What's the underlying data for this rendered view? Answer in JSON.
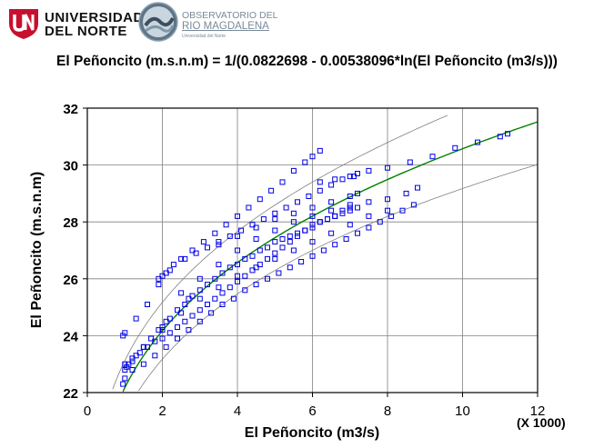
{
  "logos": {
    "university_line1": "UNIVERSIDAD",
    "university_line2": "DEL NORTE",
    "observatory_line1": "OBSERVATORIO DEL",
    "observatory_line2": "RIO MAGDALENA",
    "observatory_line3": "Universidad del Norte"
  },
  "chart_data": {
    "type": "scatter",
    "title": "El Peñoncito (m.s.n.m) = 1/(0.0822698 - 0.00538096*ln(El Peñoncito (m3/s)))",
    "xlabel": "El Peñoncito (m3/s)",
    "ylabel": "El Peñoncito (m.s.n.m)",
    "x_multiplier": "(X 1000)",
    "xlim": [
      0,
      12
    ],
    "ylim": [
      22,
      32
    ],
    "x_ticks": [
      0,
      2,
      4,
      6,
      8,
      10,
      12
    ],
    "y_ticks": [
      22,
      24,
      26,
      28,
      30,
      32
    ],
    "grid": true,
    "fit_model": {
      "a": 0.0822698,
      "b": 0.00538096
    },
    "colors": {
      "points": "#0000e6",
      "fit": "#008000",
      "bands": "#808080"
    },
    "series": [
      {
        "name": "",
        "kind": "points",
        "x": [
          0.95,
          1.0,
          1.0,
          1.05,
          1.1,
          1.2,
          1.3,
          1.5,
          1.7,
          1.9,
          2.0,
          2.1,
          2.2,
          2.4,
          2.6,
          2.7,
          2.8,
          3.0,
          3.2,
          3.4,
          3.6,
          3.8,
          4.0,
          4.2,
          4.4,
          4.6,
          4.8,
          5.0,
          5.2,
          5.4,
          5.6,
          5.8,
          6.0,
          6.2,
          6.4,
          6.6,
          6.8,
          7.0,
          7.2,
          1.0,
          1.2,
          1.4,
          1.6,
          1.8,
          2.0,
          2.2,
          2.4,
          2.6,
          2.8,
          3.0,
          3.2,
          3.4,
          3.6,
          3.8,
          4.0,
          4.2,
          4.4,
          4.6,
          4.8,
          5.0,
          5.2,
          5.4,
          5.6,
          5.8,
          6.0,
          6.2,
          6.4,
          6.6,
          6.8,
          7.0,
          1.2,
          1.5,
          1.8,
          2.1,
          2.4,
          2.7,
          3.0,
          3.3,
          3.6,
          3.9,
          4.2,
          4.5,
          4.8,
          5.1,
          5.4,
          5.7,
          6.0,
          6.3,
          6.6,
          6.9,
          7.2,
          7.5,
          7.8,
          8.1,
          8.4,
          8.7,
          2.5,
          3.0,
          3.5,
          4.0,
          4.5,
          5.0,
          5.5,
          6.0,
          6.5,
          7.0,
          7.5,
          8.0,
          8.5,
          8.8,
          6.2,
          6.6,
          7.0,
          7.5,
          8.0,
          8.6,
          9.2,
          9.8,
          10.4,
          11.0,
          11.2,
          0.95,
          1.0,
          1.3,
          1.6,
          1.9,
          2.0,
          2.1,
          2.2,
          2.5,
          2.8,
          3.1,
          3.4,
          3.7,
          4.0,
          4.3,
          4.6,
          4.9,
          5.2,
          5.5,
          5.8,
          6.0,
          6.2,
          1.9,
          2.1,
          2.3,
          2.6,
          2.9,
          3.2,
          3.5,
          3.8,
          4.1,
          4.4,
          4.7,
          5.0,
          5.3,
          5.6,
          5.9,
          6.2,
          6.5,
          6.8,
          7.1,
          7.2,
          3.5,
          4.0,
          4.5,
          5.0,
          5.5,
          6.0,
          6.5,
          7.0,
          7.2,
          1.5,
          2.0,
          2.5,
          3.0,
          3.5,
          4.0,
          4.5,
          5.0,
          5.5,
          6.0,
          6.5,
          7.0,
          7.5,
          8.0
        ],
        "y": [
          22.3,
          22.5,
          22.8,
          22.9,
          23.0,
          23.1,
          23.3,
          23.6,
          23.9,
          24.2,
          24.3,
          24.5,
          24.6,
          24.9,
          25.1,
          25.3,
          25.4,
          25.6,
          25.8,
          26.0,
          26.2,
          26.4,
          26.5,
          26.7,
          26.8,
          27.0,
          27.1,
          27.3,
          27.4,
          27.5,
          27.6,
          27.7,
          27.8,
          28.0,
          28.1,
          28.2,
          28.3,
          28.4,
          28.5,
          23.0,
          23.2,
          23.4,
          23.6,
          23.8,
          23.9,
          24.1,
          24.3,
          24.5,
          24.7,
          24.9,
          25.1,
          25.3,
          25.5,
          25.7,
          25.9,
          26.1,
          26.3,
          26.5,
          26.7,
          26.9,
          27.1,
          27.3,
          27.5,
          27.7,
          27.9,
          28.0,
          28.1,
          28.2,
          28.4,
          28.5,
          22.8,
          23.0,
          23.3,
          23.6,
          23.9,
          24.2,
          24.5,
          24.8,
          25.1,
          25.3,
          25.6,
          25.8,
          26.0,
          26.2,
          26.4,
          26.6,
          26.8,
          27.0,
          27.2,
          27.4,
          27.6,
          27.8,
          28.0,
          28.2,
          28.4,
          28.6,
          25.5,
          26.0,
          26.5,
          27.0,
          27.4,
          27.7,
          28.0,
          28.2,
          28.4,
          28.6,
          28.7,
          28.8,
          29.0,
          29.2,
          29.4,
          29.5,
          29.6,
          29.8,
          29.9,
          30.1,
          30.3,
          30.6,
          30.8,
          31.0,
          31.1,
          24.0,
          24.1,
          24.6,
          25.1,
          25.8,
          26.1,
          26.2,
          26.3,
          26.7,
          27.0,
          27.3,
          27.6,
          27.9,
          28.2,
          28.5,
          28.8,
          29.1,
          29.4,
          29.8,
          30.1,
          30.3,
          30.5,
          26.0,
          26.2,
          26.5,
          26.7,
          26.9,
          27.1,
          27.3,
          27.5,
          27.7,
          27.9,
          28.1,
          28.3,
          28.5,
          28.7,
          28.9,
          29.1,
          29.3,
          29.5,
          29.6,
          29.7,
          27.2,
          27.5,
          27.8,
          28.1,
          28.3,
          28.5,
          28.7,
          28.9,
          29.0,
          23.6,
          24.2,
          24.8,
          25.3,
          25.7,
          26.1,
          26.4,
          26.7,
          27.0,
          27.3,
          27.6,
          27.9,
          28.2,
          28.4
        ]
      },
      {
        "name": "",
        "kind": "fit-line"
      },
      {
        "name": "",
        "kind": "prediction-band-upper"
      },
      {
        "name": "",
        "kind": "prediction-band-lower"
      }
    ]
  }
}
